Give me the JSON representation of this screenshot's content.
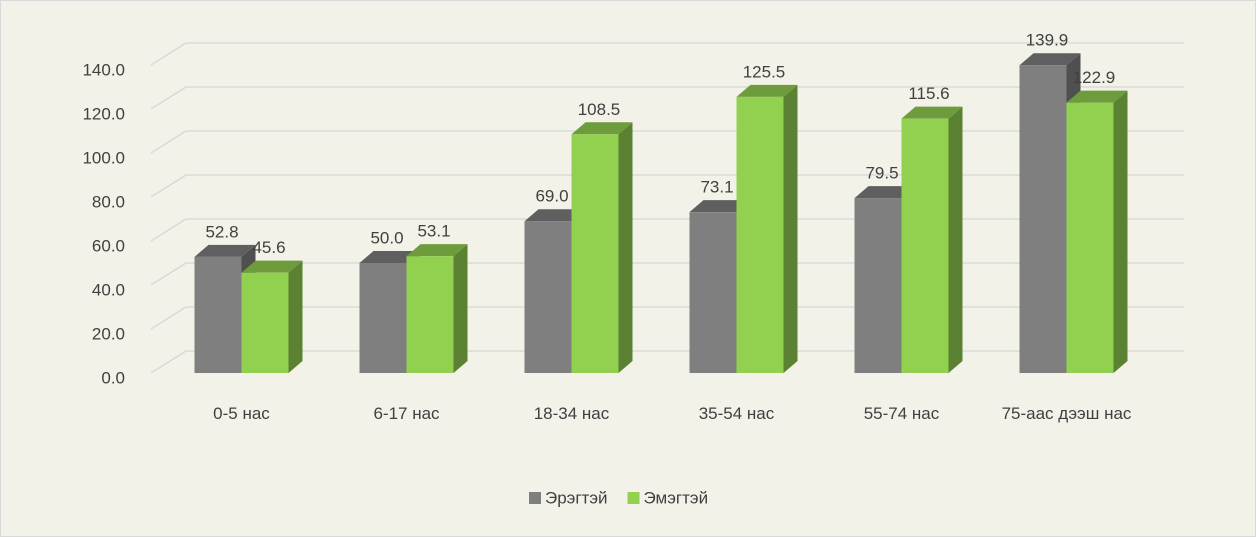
{
  "chart_data": {
    "type": "bar",
    "categories": [
      "0-5 нас",
      "6-17 нас",
      "18-34 нас",
      "35-54 нас",
      "55-74 нас",
      "75-аас дээш нас"
    ],
    "series": [
      {
        "name": "Эрэгтэй",
        "color": "#7f7f7f",
        "values": [
          52.8,
          50.0,
          69.0,
          73.1,
          79.5,
          139.9
        ],
        "value_labels": [
          "52.8",
          "50.0",
          "69.0",
          "73.1",
          "79.5",
          "139.9"
        ]
      },
      {
        "name": "Эмэгтэй",
        "color": "#92d050",
        "values": [
          45.6,
          53.1,
          108.5,
          125.5,
          115.6,
          122.9
        ],
        "value_labels": [
          "45.6",
          "53.1",
          "108.5",
          "125.5",
          "115.6",
          "122.9"
        ]
      }
    ],
    "ylim": [
      0,
      140
    ],
    "yticks": [
      {
        "value": 0,
        "label": "0.0"
      },
      {
        "value": 20,
        "label": "20.0"
      },
      {
        "value": 40,
        "label": "40.0"
      },
      {
        "value": 60,
        "label": "60.0"
      },
      {
        "value": 80,
        "label": "80.0"
      },
      {
        "value": 100,
        "label": "100.0"
      },
      {
        "value": 120,
        "label": "120.0"
      },
      {
        "value": 140,
        "label": "140.0"
      }
    ],
    "grid": true,
    "legend": "bottom"
  }
}
